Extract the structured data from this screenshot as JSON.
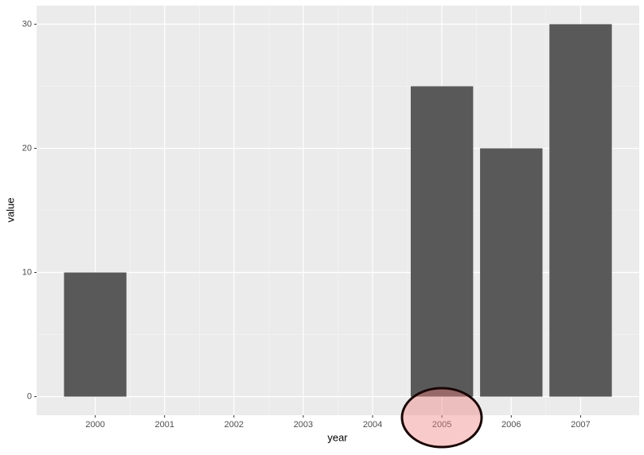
{
  "chart_data": {
    "type": "bar",
    "x_label": "year",
    "y_label": "value",
    "x": [
      2000,
      2005,
      2006,
      2007
    ],
    "values": [
      10,
      25,
      20,
      30
    ],
    "color": "#595959",
    "xlim": [
      1999.155,
      2007.845
    ],
    "xticks": [
      2000,
      2001,
      2002,
      2003,
      2004,
      2005,
      2006,
      2007
    ],
    "ylim": [
      -1.5,
      31.5
    ],
    "yticks": [
      0,
      10,
      20,
      30
    ],
    "grid": true
  }
}
